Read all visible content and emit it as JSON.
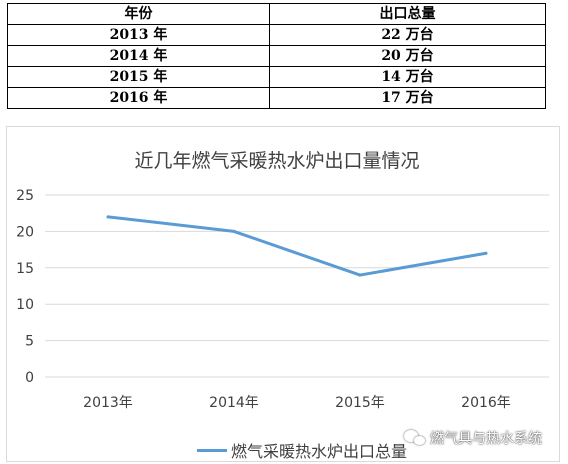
{
  "table": {
    "headers": [
      "年份",
      "出口总量"
    ],
    "rows": [
      [
        "2013 年",
        "22 万台"
      ],
      [
        "2014 年",
        "20 万台"
      ],
      [
        "2015 年",
        "14 万台"
      ],
      [
        "2016 年",
        "17 万台"
      ]
    ]
  },
  "chart_data": {
    "type": "line",
    "title": "近几年燃气采暖热水炉出口量情况",
    "categories": [
      "2013年",
      "2014年",
      "2015年",
      "2016年"
    ],
    "series": [
      {
        "name": "燃气采暖热水炉出口总量",
        "values": [
          22,
          20,
          14,
          17
        ],
        "color": "#5b9bd5"
      }
    ],
    "ylim": [
      0,
      25
    ],
    "yticks": [
      0,
      5,
      10,
      15,
      20,
      25
    ],
    "grid": true,
    "legend": "bottom",
    "xlabel": "",
    "ylabel": ""
  },
  "colors": {
    "series": "#5b9bd5",
    "grid": "#d9d9d9",
    "text": "#404040"
  },
  "watermark": {
    "text": "燃气具与热水系统",
    "icon": "wechat-icon"
  }
}
